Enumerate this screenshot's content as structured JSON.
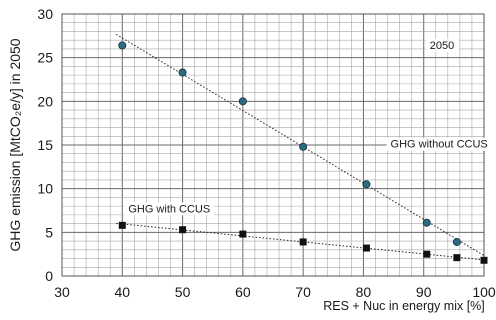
{
  "chart_data": {
    "type": "scatter",
    "title": "",
    "xlabel": "RES + Nuc in energy mix [%]",
    "ylabel": "GHG emission [MtCO₂e/y] in 2050",
    "xlim": [
      30,
      100
    ],
    "ylim": [
      0,
      30
    ],
    "x_ticks": [
      30,
      40,
      50,
      60,
      70,
      80,
      90,
      100
    ],
    "y_ticks": [
      0,
      5,
      10,
      15,
      20,
      25,
      30
    ],
    "grid": true,
    "series": [
      {
        "name": "GHG without CCUS",
        "marker": "circle",
        "color": "#2e6a80",
        "x": [
          40,
          50,
          60,
          70,
          80.5,
          90.5,
          95.5
        ],
        "y": [
          26.4,
          23.3,
          20.0,
          14.8,
          10.5,
          6.1,
          3.9
        ]
      },
      {
        "name": "GHG with CCUS",
        "marker": "square",
        "color": "#111111",
        "x": [
          40,
          50,
          60,
          70,
          80.5,
          90.5,
          95.5,
          100
        ],
        "y": [
          5.8,
          5.3,
          4.8,
          3.9,
          3.2,
          2.5,
          2.1,
          1.8
        ]
      }
    ],
    "annotations": [
      {
        "text": "2050",
        "x": 91,
        "y": 26.1
      },
      {
        "text": "GHG without CCUS",
        "x": 84.5,
        "y": 14.8
      },
      {
        "text": "GHG with CCUS",
        "x": 41,
        "y": 7.4
      }
    ]
  }
}
